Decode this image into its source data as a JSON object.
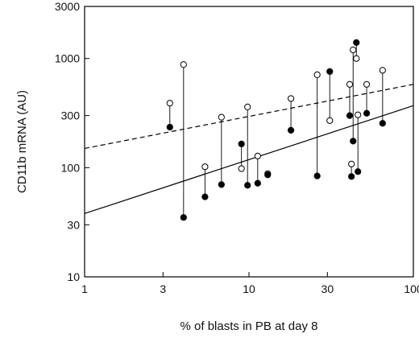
{
  "chart_data": {
    "type": "scatter",
    "xlabel": "% of blasts in PB at day 8",
    "ylabel": "CD11b mRNA (AU)",
    "xscale": "log",
    "yscale": "log",
    "xlim": [
      1,
      100
    ],
    "ylim": [
      10,
      3000
    ],
    "x_ticks": [
      {
        "value": 1,
        "label": "1"
      },
      {
        "value": 3,
        "label": "3"
      },
      {
        "value": 10,
        "label": "10"
      },
      {
        "value": 30,
        "label": "30"
      },
      {
        "value": 100,
        "label": "100"
      }
    ],
    "y_ticks": [
      {
        "value": 10,
        "label": "10"
      },
      {
        "value": 30,
        "label": "30"
      },
      {
        "value": 100,
        "label": "100"
      },
      {
        "value": 300,
        "label": "300"
      },
      {
        "value": 1000,
        "label": "1000"
      },
      {
        "value": 3000,
        "label": "3000"
      }
    ],
    "marker_colors": {
      "open": "#ffffff",
      "filled": "#000000",
      "stroke": "#000000"
    },
    "series": [
      {
        "marker": "open",
        "points": [
          [
            3.3,
            390
          ],
          [
            4.0,
            880
          ],
          [
            5.4,
            102
          ],
          [
            6.8,
            290
          ],
          [
            9.0,
            98
          ],
          [
            9.8,
            360
          ],
          [
            11.3,
            128
          ],
          [
            13.0,
            88
          ],
          [
            18.0,
            430
          ],
          [
            26.0,
            710
          ],
          [
            31.0,
            270
          ],
          [
            41.0,
            580
          ],
          [
            42.0,
            108
          ],
          [
            43.0,
            1200
          ],
          [
            45.0,
            1000
          ],
          [
            46.0,
            305
          ],
          [
            52.0,
            580
          ],
          [
            65.0,
            780
          ]
        ]
      },
      {
        "marker": "filled",
        "points": [
          [
            3.3,
            235
          ],
          [
            4.0,
            35
          ],
          [
            5.4,
            54
          ],
          [
            6.8,
            70
          ],
          [
            9.0,
            165
          ],
          [
            9.8,
            69
          ],
          [
            11.3,
            72
          ],
          [
            13.0,
            86
          ],
          [
            18.0,
            220
          ],
          [
            26.0,
            84
          ],
          [
            31.0,
            760
          ],
          [
            41.0,
            300
          ],
          [
            42.0,
            83
          ],
          [
            43.0,
            175
          ],
          [
            45.0,
            1400
          ],
          [
            46.0,
            92
          ],
          [
            52.0,
            315
          ],
          [
            65.0,
            255
          ]
        ]
      }
    ],
    "fit_lines": [
      {
        "style": "dashed",
        "from": [
          1,
          150
        ],
        "to": [
          100,
          580
        ]
      },
      {
        "style": "solid",
        "from": [
          1,
          38
        ],
        "to": [
          100,
          370
        ]
      }
    ]
  }
}
